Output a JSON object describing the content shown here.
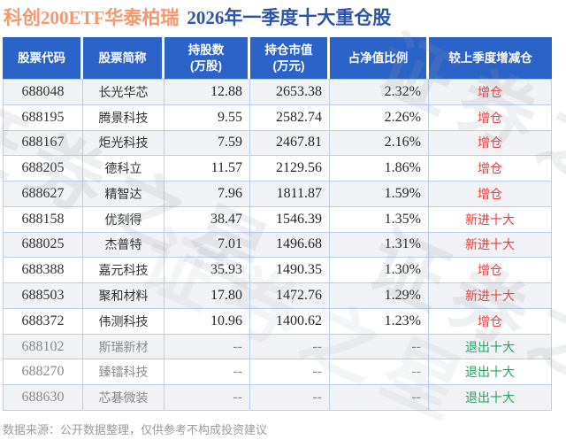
{
  "page": {
    "title_fund": "科创200ETF华泰柏瑞",
    "title_period": "2026年一季度十大重仓股",
    "footer": "数据来源：公开数据整理，仅供参考不构成投资建议",
    "watermark": "证券之星"
  },
  "colors": {
    "header_bg": "#2c63c8",
    "title_orange": "#f7976b",
    "title_blue": "#2b54a9",
    "increase_red": "#ec3a38",
    "exit_green": "#21a55c",
    "muted_gray": "#8b8b8b",
    "border_blue": "#b9cfe9",
    "row_alt_bg": "#f1f2f5"
  },
  "table": {
    "headers": [
      {
        "key": "code",
        "line1": "股票代码",
        "line2": ""
      },
      {
        "key": "name",
        "line1": "股票简称",
        "line2": ""
      },
      {
        "key": "shares",
        "line1": "持股数",
        "line2": "(万股)"
      },
      {
        "key": "value",
        "line1": "持仓市值",
        "line2": "(万元)"
      },
      {
        "key": "pct",
        "line1": "占净值比例",
        "line2": ""
      },
      {
        "key": "action",
        "line1": "较上季度增减仓",
        "line2": ""
      }
    ],
    "rows": [
      {
        "code": "688048",
        "name": "长光华芯",
        "shares": "12.88",
        "value": "2653.38",
        "pct": "2.32%",
        "action": "增仓",
        "action_type": "increase",
        "muted": false
      },
      {
        "code": "688195",
        "name": "腾景科技",
        "shares": "9.55",
        "value": "2582.74",
        "pct": "2.26%",
        "action": "增仓",
        "action_type": "increase",
        "muted": false
      },
      {
        "code": "688167",
        "name": "炬光科技",
        "shares": "7.59",
        "value": "2467.81",
        "pct": "2.16%",
        "action": "增仓",
        "action_type": "increase",
        "muted": false
      },
      {
        "code": "688205",
        "name": "德科立",
        "shares": "11.57",
        "value": "2129.56",
        "pct": "1.86%",
        "action": "增仓",
        "action_type": "increase",
        "muted": false
      },
      {
        "code": "688627",
        "name": "精智达",
        "shares": "7.96",
        "value": "1811.87",
        "pct": "1.59%",
        "action": "增仓",
        "action_type": "increase",
        "muted": false
      },
      {
        "code": "688158",
        "name": "优刻得",
        "shares": "38.47",
        "value": "1546.39",
        "pct": "1.35%",
        "action": "新进十大",
        "action_type": "new",
        "muted": false
      },
      {
        "code": "688025",
        "name": "杰普特",
        "shares": "7.01",
        "value": "1496.68",
        "pct": "1.31%",
        "action": "新进十大",
        "action_type": "new",
        "muted": false
      },
      {
        "code": "688388",
        "name": "嘉元科技",
        "shares": "35.93",
        "value": "1490.35",
        "pct": "1.30%",
        "action": "增仓",
        "action_type": "increase",
        "muted": false
      },
      {
        "code": "688503",
        "name": "聚和材料",
        "shares": "17.80",
        "value": "1472.76",
        "pct": "1.29%",
        "action": "新进十大",
        "action_type": "new",
        "muted": false
      },
      {
        "code": "688372",
        "name": "伟测科技",
        "shares": "10.96",
        "value": "1400.62",
        "pct": "1.23%",
        "action": "增仓",
        "action_type": "increase",
        "muted": false
      },
      {
        "code": "688102",
        "name": "斯瑞新材",
        "shares": "--",
        "value": "--",
        "pct": "--",
        "action": "退出十大",
        "action_type": "exit",
        "muted": true
      },
      {
        "code": "688270",
        "name": "臻镭科技",
        "shares": "--",
        "value": "--",
        "pct": "--",
        "action": "退出十大",
        "action_type": "exit",
        "muted": true
      },
      {
        "code": "688630",
        "name": "芯碁微装",
        "shares": "--",
        "value": "--",
        "pct": "--",
        "action": "退出十大",
        "action_type": "exit",
        "muted": true
      }
    ]
  },
  "chart_data": {
    "type": "table",
    "title": "科创200ETF华泰柏瑞 2026年一季度十大重仓股",
    "columns": [
      "股票代码",
      "股票简称",
      "持股数(万股)",
      "持仓市值(万元)",
      "占净值比例",
      "较上季度增减仓"
    ],
    "rows": [
      [
        "688048",
        "长光华芯",
        "12.88",
        "2653.38",
        "2.32%",
        "增仓"
      ],
      [
        "688195",
        "腾景科技",
        "9.55",
        "2582.74",
        "2.26%",
        "增仓"
      ],
      [
        "688167",
        "炬光科技",
        "7.59",
        "2467.81",
        "2.16%",
        "增仓"
      ],
      [
        "688205",
        "德科立",
        "11.57",
        "2129.56",
        "1.86%",
        "增仓"
      ],
      [
        "688627",
        "精智达",
        "7.96",
        "1811.87",
        "1.59%",
        "增仓"
      ],
      [
        "688158",
        "优刻得",
        "38.47",
        "1546.39",
        "1.35%",
        "新进十大"
      ],
      [
        "688025",
        "杰普特",
        "7.01",
        "1496.68",
        "1.31%",
        "新进十大"
      ],
      [
        "688388",
        "嘉元科技",
        "35.93",
        "1490.35",
        "1.30%",
        "增仓"
      ],
      [
        "688503",
        "聚和材料",
        "17.80",
        "1472.76",
        "1.29%",
        "新进十大"
      ],
      [
        "688372",
        "伟测科技",
        "10.96",
        "1400.62",
        "1.23%",
        "增仓"
      ],
      [
        "688102",
        "斯瑞新材",
        "--",
        "--",
        "--",
        "退出十大"
      ],
      [
        "688270",
        "臻镭科技",
        "--",
        "--",
        "--",
        "退出十大"
      ],
      [
        "688630",
        "芯碁微装",
        "--",
        "--",
        "--",
        "退出十大"
      ]
    ]
  }
}
